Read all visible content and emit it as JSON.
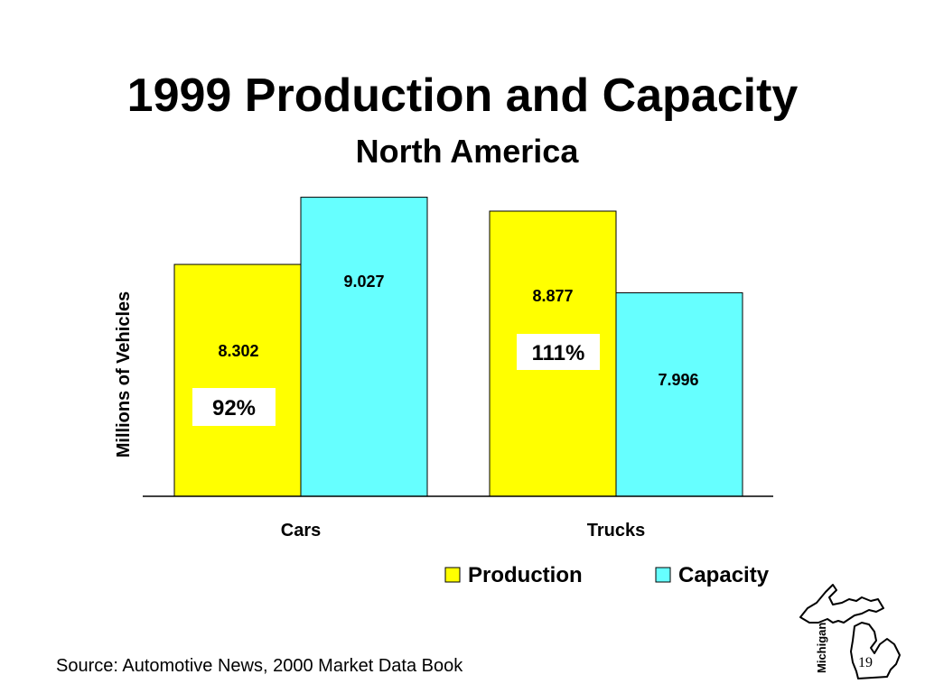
{
  "slide": {
    "title": "1999 Production and Capacity",
    "subtitle": "North America",
    "source": "Source:  Automotive News, 2000 Market Data Book",
    "page_number": "19",
    "logo_text": "Michigan"
  },
  "chart_data": {
    "type": "bar",
    "categories": [
      "Cars",
      "Trucks"
    ],
    "series": [
      {
        "name": "Production",
        "values": [
          8.302,
          8.877
        ],
        "color": "#ffff00"
      },
      {
        "name": "Capacity",
        "values": [
          9.027,
          7.996
        ],
        "color": "#66ffff"
      }
    ],
    "data_labels": [
      [
        "8.302",
        "8.877"
      ],
      [
        "9.027",
        "7.996"
      ]
    ],
    "annotations": [
      "92%",
      "111%"
    ],
    "ylabel": "Millions of Vehicles",
    "ylim": [
      5.8,
      9.5
    ],
    "legend_position": "bottom-right",
    "grid": false
  }
}
